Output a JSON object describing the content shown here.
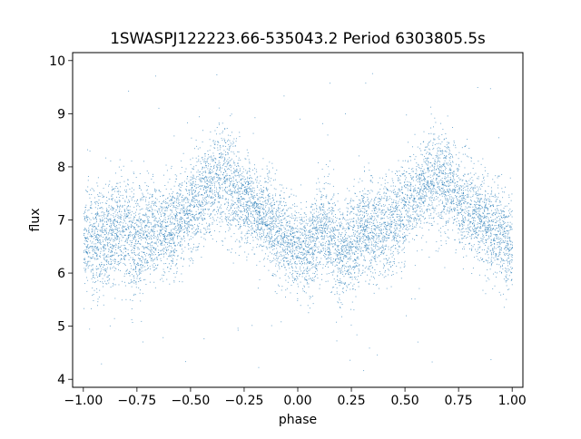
{
  "chart_data": {
    "type": "scatter",
    "title": "1SWASPJ122223.66-535043.2 Period 6303805.5s",
    "xlabel": "phase",
    "ylabel": "flux",
    "xlim": [
      -1.05,
      1.05
    ],
    "ylim": [
      3.85,
      10.15
    ],
    "xticks": [
      -1.0,
      -0.75,
      -0.5,
      -0.25,
      0.0,
      0.25,
      0.5,
      0.75,
      1.0
    ],
    "xtick_labels": [
      "−1.00",
      "−0.75",
      "−0.50",
      "−0.25",
      "0.00",
      "0.25",
      "0.50",
      "0.75",
      "1.00"
    ],
    "yticks": [
      4,
      5,
      6,
      7,
      8,
      9,
      10
    ],
    "ytick_labels": [
      "4",
      "5",
      "6",
      "7",
      "8",
      "9",
      "10"
    ],
    "grid": false,
    "marker_color": "#1f77b4",
    "series": [
      {
        "profile_phase": [
          -1.0,
          -0.9,
          -0.8,
          -0.75,
          -0.7,
          -0.6,
          -0.5,
          -0.4,
          -0.35,
          -0.3,
          -0.25,
          -0.2,
          -0.1,
          0.0,
          0.05,
          0.1,
          0.15,
          0.2,
          0.25,
          0.3,
          0.35,
          0.4,
          0.5,
          0.6,
          0.65,
          0.7,
          0.75,
          0.8,
          0.9,
          1.0
        ],
        "profile_median_flux": [
          6.6,
          6.7,
          6.9,
          6.5,
          6.8,
          6.8,
          7.2,
          7.7,
          7.8,
          7.6,
          7.4,
          7.2,
          6.8,
          6.5,
          6.4,
          6.9,
          6.7,
          6.3,
          6.5,
          6.9,
          6.8,
          6.8,
          7.2,
          7.7,
          7.8,
          7.6,
          7.4,
          7.2,
          6.8,
          6.6
        ],
        "profile_spread": [
          0.45,
          0.5,
          0.5,
          0.55,
          0.45,
          0.45,
          0.45,
          0.4,
          0.5,
          0.5,
          0.45,
          0.4,
          0.45,
          0.4,
          0.4,
          0.45,
          0.45,
          0.45,
          0.5,
          0.45,
          0.45,
          0.45,
          0.45,
          0.4,
          0.5,
          0.5,
          0.45,
          0.4,
          0.45,
          0.45
        ],
        "point_count": 9000,
        "outlier_fraction": 0.01
      }
    ]
  }
}
